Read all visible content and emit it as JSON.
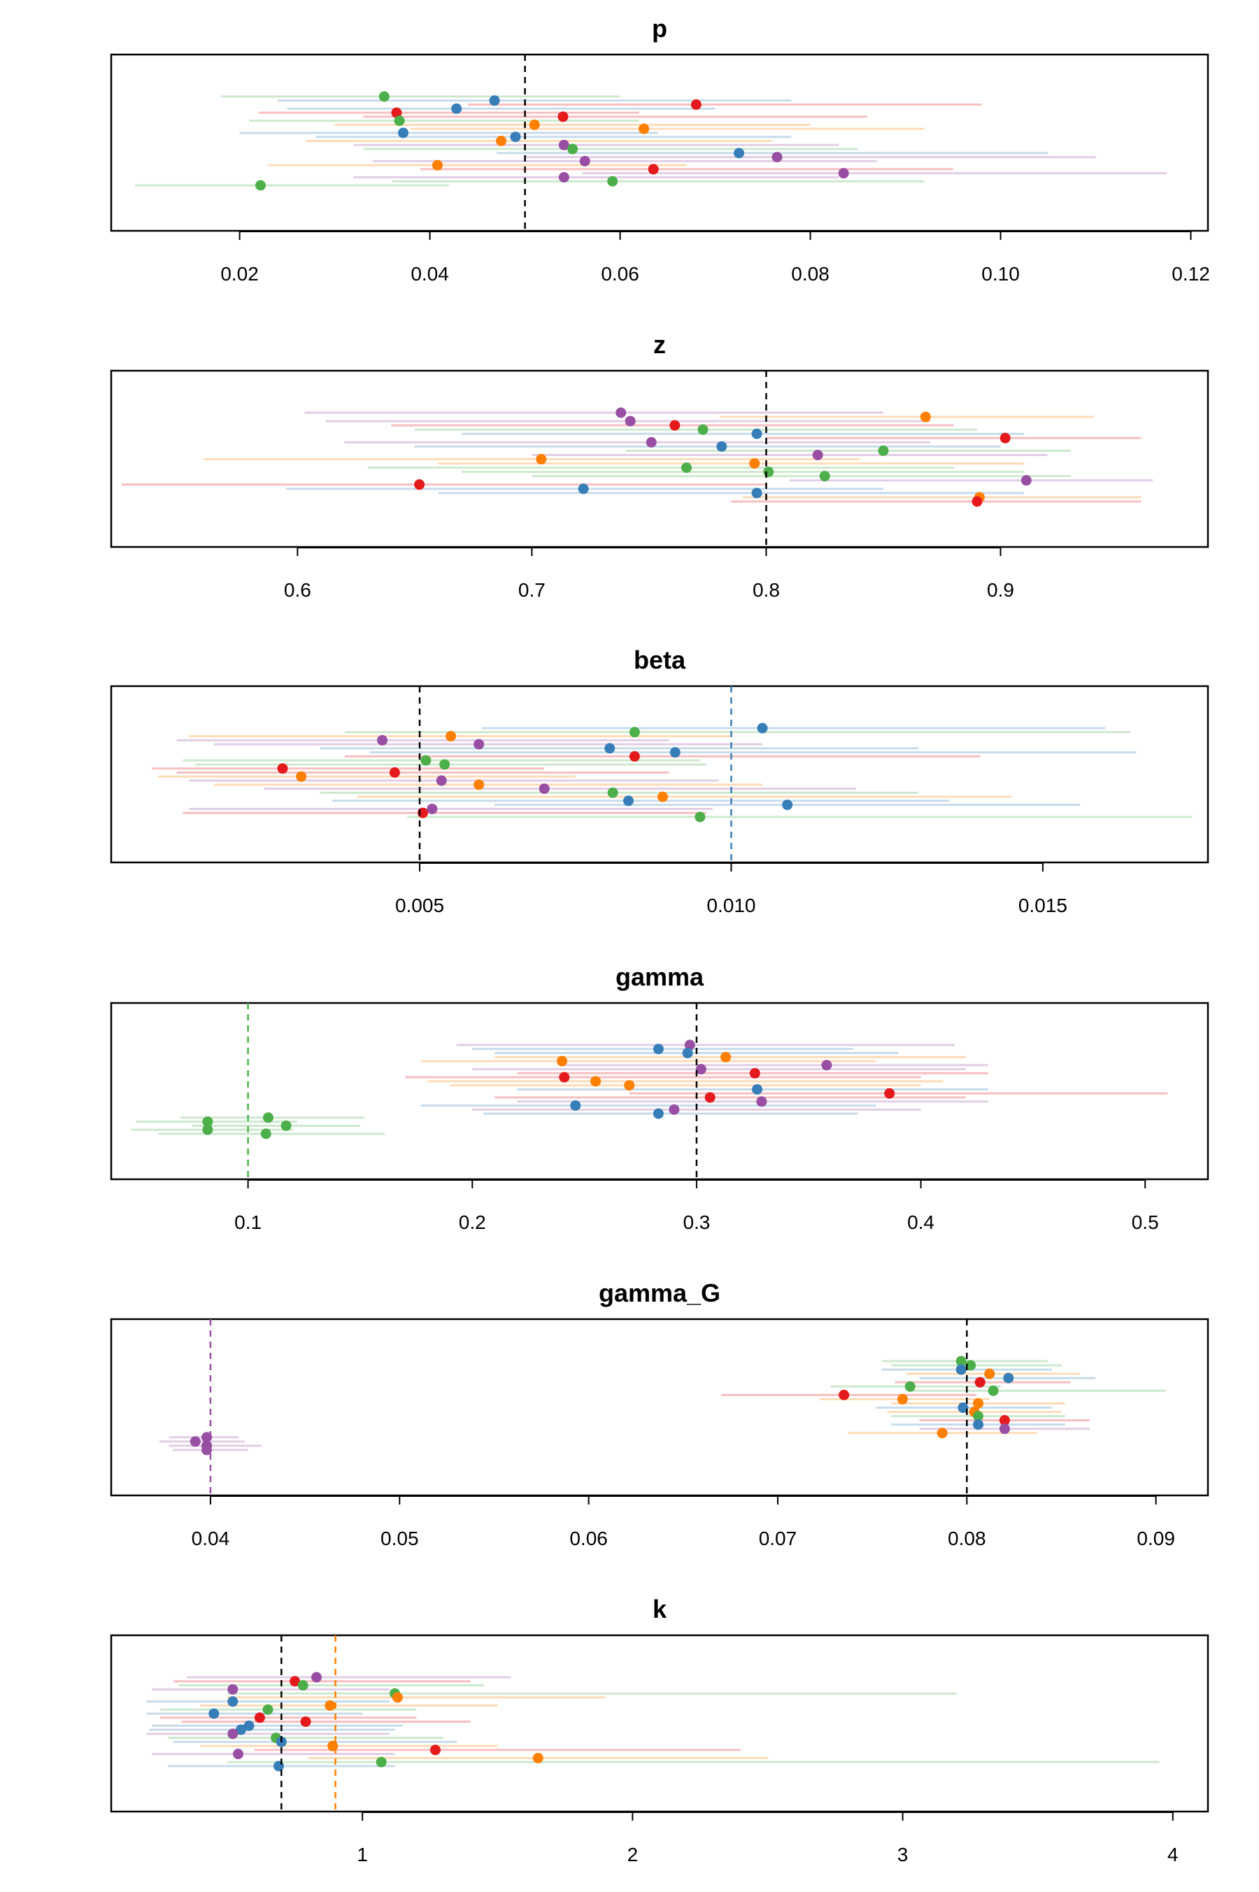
{
  "figure": {
    "type": "forest-plot-grid"
  },
  "colors": {
    "red": "#e41a1c",
    "blue": "#377eb8",
    "green": "#4daf4a",
    "purple": "#984ea3",
    "orange": "#ff7f00",
    "black": "#000000"
  },
  "chart_data": [
    {
      "type": "scatter",
      "title": "p",
      "xlabel": "",
      "ylabel": "",
      "grid": false,
      "xlim": [
        0.0065,
        0.1218
      ],
      "ticks": [
        0.02,
        0.04,
        0.06,
        0.08,
        0.1,
        0.12
      ],
      "tick_labels": [
        "0.02",
        "0.04",
        "0.06",
        "0.08",
        "0.10",
        "0.12"
      ],
      "ref_lines": [
        {
          "x": 0.05,
          "color": "black"
        }
      ],
      "points": [
        {
          "x": 0.0352,
          "lo": 0.018,
          "hi": 0.06,
          "color": "green"
        },
        {
          "x": 0.0468,
          "lo": 0.024,
          "hi": 0.078,
          "color": "blue"
        },
        {
          "x": 0.068,
          "lo": 0.044,
          "hi": 0.098,
          "color": "red"
        },
        {
          "x": 0.0428,
          "lo": 0.025,
          "hi": 0.07,
          "color": "blue"
        },
        {
          "x": 0.0365,
          "lo": 0.022,
          "hi": 0.062,
          "color": "red"
        },
        {
          "x": 0.054,
          "lo": 0.033,
          "hi": 0.086,
          "color": "red"
        },
        {
          "x": 0.0368,
          "lo": 0.021,
          "hi": 0.062,
          "color": "green"
        },
        {
          "x": 0.051,
          "lo": 0.03,
          "hi": 0.08,
          "color": "orange"
        },
        {
          "x": 0.0625,
          "lo": 0.038,
          "hi": 0.092,
          "color": "orange"
        },
        {
          "x": 0.0372,
          "lo": 0.02,
          "hi": 0.064,
          "color": "blue"
        },
        {
          "x": 0.049,
          "lo": 0.028,
          "hi": 0.078,
          "color": "blue"
        },
        {
          "x": 0.0475,
          "lo": 0.027,
          "hi": 0.076,
          "color": "orange"
        },
        {
          "x": 0.0541,
          "lo": 0.032,
          "hi": 0.083,
          "color": "purple"
        },
        {
          "x": 0.055,
          "lo": 0.033,
          "hi": 0.085,
          "color": "green"
        },
        {
          "x": 0.0725,
          "lo": 0.047,
          "hi": 0.105,
          "color": "blue"
        },
        {
          "x": 0.0765,
          "lo": 0.05,
          "hi": 0.11,
          "color": "purple"
        },
        {
          "x": 0.0563,
          "lo": 0.034,
          "hi": 0.087,
          "color": "purple"
        },
        {
          "x": 0.0408,
          "lo": 0.023,
          "hi": 0.067,
          "color": "orange"
        },
        {
          "x": 0.0635,
          "lo": 0.039,
          "hi": 0.095,
          "color": "red"
        },
        {
          "x": 0.0835,
          "lo": 0.056,
          "hi": 0.1175,
          "color": "purple"
        },
        {
          "x": 0.0541,
          "lo": 0.032,
          "hi": 0.083,
          "color": "purple"
        },
        {
          "x": 0.0592,
          "lo": 0.036,
          "hi": 0.092,
          "color": "green"
        },
        {
          "x": 0.0222,
          "lo": 0.009,
          "hi": 0.042,
          "color": "green"
        }
      ]
    },
    {
      "type": "scatter",
      "title": "z",
      "xlabel": "",
      "ylabel": "",
      "grid": false,
      "xlim": [
        0.5205,
        0.9885
      ],
      "ticks": [
        0.6,
        0.7,
        0.8,
        0.9
      ],
      "tick_labels": [
        "0.6",
        "0.7",
        "0.8",
        "0.9"
      ],
      "ref_lines": [
        {
          "x": 0.8,
          "color": "black"
        }
      ],
      "points": [
        {
          "x": 0.738,
          "lo": 0.603,
          "hi": 0.85,
          "color": "purple"
        },
        {
          "x": 0.868,
          "lo": 0.78,
          "hi": 0.94,
          "color": "orange"
        },
        {
          "x": 0.742,
          "lo": 0.612,
          "hi": 0.87,
          "color": "purple"
        },
        {
          "x": 0.761,
          "lo": 0.64,
          "hi": 0.88,
          "color": "red"
        },
        {
          "x": 0.773,
          "lo": 0.65,
          "hi": 0.89,
          "color": "green"
        },
        {
          "x": 0.796,
          "lo": 0.67,
          "hi": 0.91,
          "color": "blue"
        },
        {
          "x": 0.902,
          "lo": 0.8,
          "hi": 0.96,
          "color": "red"
        },
        {
          "x": 0.751,
          "lo": 0.62,
          "hi": 0.87,
          "color": "purple"
        },
        {
          "x": 0.781,
          "lo": 0.65,
          "hi": 0.9,
          "color": "blue"
        },
        {
          "x": 0.85,
          "lo": 0.74,
          "hi": 0.93,
          "color": "green"
        },
        {
          "x": 0.822,
          "lo": 0.7,
          "hi": 0.92,
          "color": "purple"
        },
        {
          "x": 0.704,
          "lo": 0.56,
          "hi": 0.84,
          "color": "orange"
        },
        {
          "x": 0.795,
          "lo": 0.66,
          "hi": 0.91,
          "color": "orange"
        },
        {
          "x": 0.766,
          "lo": 0.63,
          "hi": 0.88,
          "color": "green"
        },
        {
          "x": 0.801,
          "lo": 0.67,
          "hi": 0.91,
          "color": "green"
        },
        {
          "x": 0.825,
          "lo": 0.7,
          "hi": 0.93,
          "color": "green"
        },
        {
          "x": 0.911,
          "lo": 0.81,
          "hi": 0.965,
          "color": "purple"
        },
        {
          "x": 0.652,
          "lo": 0.525,
          "hi": 0.8,
          "color": "red"
        },
        {
          "x": 0.722,
          "lo": 0.595,
          "hi": 0.85,
          "color": "blue"
        },
        {
          "x": 0.796,
          "lo": 0.66,
          "hi": 0.91,
          "color": "blue"
        },
        {
          "x": 0.891,
          "lo": 0.79,
          "hi": 0.96,
          "color": "orange"
        },
        {
          "x": 0.89,
          "lo": 0.785,
          "hi": 0.96,
          "color": "red"
        }
      ]
    },
    {
      "type": "scatter",
      "title": "beta",
      "xlabel": "",
      "ylabel": "",
      "grid": false,
      "xlim": [
        5e-05,
        0.01765
      ],
      "ticks": [
        0.005,
        0.01,
        0.015
      ],
      "tick_labels": [
        "0.005",
        "0.010",
        "0.015"
      ],
      "ref_lines": [
        {
          "x": 0.005,
          "color": "black"
        },
        {
          "x": 0.01,
          "color": "blue"
        }
      ],
      "points": [
        {
          "x": 0.0105,
          "lo": 0.006,
          "hi": 0.016,
          "color": "blue"
        },
        {
          "x": 0.00845,
          "lo": 0.0038,
          "hi": 0.0164,
          "color": "green"
        },
        {
          "x": 0.0055,
          "lo": 0.0013,
          "hi": 0.01,
          "color": "orange"
        },
        {
          "x": 0.0044,
          "lo": 0.0011,
          "hi": 0.009,
          "color": "purple"
        },
        {
          "x": 0.00595,
          "lo": 0.0017,
          "hi": 0.0105,
          "color": "purple"
        },
        {
          "x": 0.00805,
          "lo": 0.0034,
          "hi": 0.013,
          "color": "blue"
        },
        {
          "x": 0.0091,
          "lo": 0.0042,
          "hi": 0.0165,
          "color": "blue"
        },
        {
          "x": 0.00845,
          "lo": 0.0038,
          "hi": 0.014,
          "color": "red"
        },
        {
          "x": 0.0051,
          "lo": 0.0012,
          "hi": 0.0095,
          "color": "green"
        },
        {
          "x": 0.0054,
          "lo": 0.0014,
          "hi": 0.0096,
          "color": "green"
        },
        {
          "x": 0.0028,
          "lo": 0.0007,
          "hi": 0.007,
          "color": "red"
        },
        {
          "x": 0.0046,
          "lo": 0.0011,
          "hi": 0.009,
          "color": "red"
        },
        {
          "x": 0.0031,
          "lo": 0.0008,
          "hi": 0.0075,
          "color": "orange"
        },
        {
          "x": 0.00535,
          "lo": 0.0013,
          "hi": 0.0098,
          "color": "purple"
        },
        {
          "x": 0.00595,
          "lo": 0.0017,
          "hi": 0.0105,
          "color": "orange"
        },
        {
          "x": 0.007,
          "lo": 0.0025,
          "hi": 0.012,
          "color": "purple"
        },
        {
          "x": 0.0081,
          "lo": 0.0034,
          "hi": 0.013,
          "color": "green"
        },
        {
          "x": 0.0089,
          "lo": 0.004,
          "hi": 0.0145,
          "color": "orange"
        },
        {
          "x": 0.00835,
          "lo": 0.0036,
          "hi": 0.0135,
          "color": "blue"
        },
        {
          "x": 0.0109,
          "lo": 0.0062,
          "hi": 0.0156,
          "color": "blue"
        },
        {
          "x": 0.0052,
          "lo": 0.0013,
          "hi": 0.0097,
          "color": "purple"
        },
        {
          "x": 0.00505,
          "lo": 0.0012,
          "hi": 0.0096,
          "color": "red"
        },
        {
          "x": 0.0095,
          "lo": 0.0048,
          "hi": 0.0174,
          "color": "green"
        }
      ]
    },
    {
      "type": "scatter",
      "title": "gamma",
      "xlabel": "",
      "ylabel": "",
      "grid": false,
      "xlim": [
        0.039,
        0.528
      ],
      "ticks": [
        0.1,
        0.2,
        0.3,
        0.4,
        0.5
      ],
      "tick_labels": [
        "0.1",
        "0.2",
        "0.3",
        "0.4",
        "0.5"
      ],
      "ref_lines": [
        {
          "x": 0.1,
          "color": "green"
        },
        {
          "x": 0.3,
          "color": "black"
        }
      ],
      "points": [
        {
          "x": 0.297,
          "lo": 0.193,
          "hi": 0.415,
          "color": "purple"
        },
        {
          "x": 0.283,
          "lo": 0.2,
          "hi": 0.37,
          "color": "blue"
        },
        {
          "x": 0.296,
          "lo": 0.21,
          "hi": 0.39,
          "color": "blue"
        },
        {
          "x": 0.313,
          "lo": 0.21,
          "hi": 0.42,
          "color": "orange"
        },
        {
          "x": 0.24,
          "lo": 0.177,
          "hi": 0.38,
          "color": "orange"
        },
        {
          "x": 0.358,
          "lo": 0.24,
          "hi": 0.43,
          "color": "purple"
        },
        {
          "x": 0.302,
          "lo": 0.2,
          "hi": 0.42,
          "color": "purple"
        },
        {
          "x": 0.326,
          "lo": 0.22,
          "hi": 0.43,
          "color": "red"
        },
        {
          "x": 0.241,
          "lo": 0.17,
          "hi": 0.4,
          "color": "red"
        },
        {
          "x": 0.255,
          "lo": 0.18,
          "hi": 0.41,
          "color": "orange"
        },
        {
          "x": 0.27,
          "lo": 0.19,
          "hi": 0.4,
          "color": "orange"
        },
        {
          "x": 0.327,
          "lo": 0.22,
          "hi": 0.43,
          "color": "blue"
        },
        {
          "x": 0.386,
          "lo": 0.27,
          "hi": 0.51,
          "color": "red"
        },
        {
          "x": 0.306,
          "lo": 0.21,
          "hi": 0.42,
          "color": "red"
        },
        {
          "x": 0.329,
          "lo": 0.22,
          "hi": 0.43,
          "color": "purple"
        },
        {
          "x": 0.246,
          "lo": 0.177,
          "hi": 0.38,
          "color": "blue"
        },
        {
          "x": 0.29,
          "lo": 0.2,
          "hi": 0.4,
          "color": "purple"
        },
        {
          "x": 0.283,
          "lo": 0.205,
          "hi": 0.372,
          "color": "blue"
        },
        {
          "x": 0.109,
          "lo": 0.07,
          "hi": 0.152,
          "color": "green"
        },
        {
          "x": 0.082,
          "lo": 0.05,
          "hi": 0.122,
          "color": "green"
        },
        {
          "x": 0.117,
          "lo": 0.075,
          "hi": 0.15,
          "color": "green"
        },
        {
          "x": 0.082,
          "lo": 0.048,
          "hi": 0.12,
          "color": "green"
        },
        {
          "x": 0.108,
          "lo": 0.06,
          "hi": 0.161,
          "color": "green"
        }
      ]
    },
    {
      "type": "scatter",
      "title": "gamma_G",
      "xlabel": "",
      "ylabel": "",
      "grid": false,
      "xlim": [
        0.03475,
        0.09275
      ],
      "ticks": [
        0.04,
        0.05,
        0.06,
        0.07,
        0.08,
        0.09
      ],
      "tick_labels": [
        "0.04",
        "0.05",
        "0.06",
        "0.07",
        "0.08",
        "0.09"
      ],
      "ref_lines": [
        {
          "x": 0.04,
          "color": "purple"
        },
        {
          "x": 0.08,
          "color": "black"
        }
      ],
      "points": [
        {
          "x": 0.0797,
          "lo": 0.0755,
          "hi": 0.0843,
          "color": "green"
        },
        {
          "x": 0.0802,
          "lo": 0.076,
          "hi": 0.085,
          "color": "green"
        },
        {
          "x": 0.0797,
          "lo": 0.0755,
          "hi": 0.0845,
          "color": "blue"
        },
        {
          "x": 0.0812,
          "lo": 0.0768,
          "hi": 0.086,
          "color": "orange"
        },
        {
          "x": 0.0822,
          "lo": 0.0775,
          "hi": 0.0868,
          "color": "blue"
        },
        {
          "x": 0.0807,
          "lo": 0.0762,
          "hi": 0.0855,
          "color": "red"
        },
        {
          "x": 0.077,
          "lo": 0.0728,
          "hi": 0.0818,
          "color": "green"
        },
        {
          "x": 0.0814,
          "lo": 0.077,
          "hi": 0.0905,
          "color": "green"
        },
        {
          "x": 0.0735,
          "lo": 0.067,
          "hi": 0.0805,
          "color": "red"
        },
        {
          "x": 0.0766,
          "lo": 0.0722,
          "hi": 0.0812,
          "color": "orange"
        },
        {
          "x": 0.0806,
          "lo": 0.076,
          "hi": 0.0852,
          "color": "orange"
        },
        {
          "x": 0.0798,
          "lo": 0.0752,
          "hi": 0.0845,
          "color": "blue"
        },
        {
          "x": 0.0804,
          "lo": 0.0758,
          "hi": 0.085,
          "color": "orange"
        },
        {
          "x": 0.0806,
          "lo": 0.076,
          "hi": 0.0852,
          "color": "green"
        },
        {
          "x": 0.082,
          "lo": 0.0775,
          "hi": 0.0865,
          "color": "red"
        },
        {
          "x": 0.0806,
          "lo": 0.076,
          "hi": 0.0852,
          "color": "blue"
        },
        {
          "x": 0.082,
          "lo": 0.0775,
          "hi": 0.0865,
          "color": "purple"
        },
        {
          "x": 0.0787,
          "lo": 0.0737,
          "hi": 0.0837,
          "color": "orange"
        },
        {
          "x": 0.0398,
          "lo": 0.0378,
          "hi": 0.0415,
          "color": "purple"
        },
        {
          "x": 0.0392,
          "lo": 0.0373,
          "hi": 0.0418,
          "color": "purple"
        },
        {
          "x": 0.0398,
          "lo": 0.0378,
          "hi": 0.0427,
          "color": "purple"
        },
        {
          "x": 0.0398,
          "lo": 0.038,
          "hi": 0.042,
          "color": "purple"
        }
      ]
    },
    {
      "type": "scatter",
      "title": "k",
      "xlabel": "",
      "ylabel": "",
      "grid": false,
      "xlim": [
        0.07,
        4.13
      ],
      "ticks": [
        1,
        2,
        3,
        4
      ],
      "tick_labels": [
        "1",
        "2",
        "3",
        "4"
      ],
      "ref_lines": [
        {
          "x": 0.7,
          "color": "black"
        },
        {
          "x": 0.9,
          "color": "orange"
        }
      ],
      "points": [
        {
          "x": 0.83,
          "lo": 0.35,
          "hi": 1.55,
          "color": "purple"
        },
        {
          "x": 0.75,
          "lo": 0.3,
          "hi": 1.4,
          "color": "red"
        },
        {
          "x": 0.78,
          "lo": 0.32,
          "hi": 1.45,
          "color": "green"
        },
        {
          "x": 0.52,
          "lo": 0.22,
          "hi": 1.1,
          "color": "purple"
        },
        {
          "x": 1.12,
          "lo": 0.5,
          "hi": 3.2,
          "color": "green"
        },
        {
          "x": 1.13,
          "lo": 0.5,
          "hi": 1.9,
          "color": "orange"
        },
        {
          "x": 0.52,
          "lo": 0.2,
          "hi": 1.1,
          "color": "blue"
        },
        {
          "x": 0.88,
          "lo": 0.4,
          "hi": 1.5,
          "color": "orange"
        },
        {
          "x": 0.65,
          "lo": 0.25,
          "hi": 1.2,
          "color": "green"
        },
        {
          "x": 0.45,
          "lo": 0.2,
          "hi": 1.0,
          "color": "blue"
        },
        {
          "x": 0.62,
          "lo": 0.25,
          "hi": 1.2,
          "color": "red"
        },
        {
          "x": 0.79,
          "lo": 0.33,
          "hi": 1.4,
          "color": "red"
        },
        {
          "x": 0.58,
          "lo": 0.22,
          "hi": 1.15,
          "color": "blue"
        },
        {
          "x": 0.55,
          "lo": 0.21,
          "hi": 1.12,
          "color": "blue"
        },
        {
          "x": 0.52,
          "lo": 0.2,
          "hi": 1.1,
          "color": "purple"
        },
        {
          "x": 0.68,
          "lo": 0.28,
          "hi": 1.3,
          "color": "green"
        },
        {
          "x": 0.7,
          "lo": 0.3,
          "hi": 1.35,
          "color": "blue"
        },
        {
          "x": 0.89,
          "lo": 0.4,
          "hi": 1.5,
          "color": "orange"
        },
        {
          "x": 1.27,
          "lo": 0.6,
          "hi": 2.4,
          "color": "red"
        },
        {
          "x": 0.54,
          "lo": 0.22,
          "hi": 1.12,
          "color": "purple"
        },
        {
          "x": 1.65,
          "lo": 0.8,
          "hi": 2.5,
          "color": "orange"
        },
        {
          "x": 1.07,
          "lo": 0.5,
          "hi": 3.95,
          "color": "green"
        },
        {
          "x": 0.69,
          "lo": 0.28,
          "hi": 1.12,
          "color": "blue"
        }
      ]
    }
  ]
}
